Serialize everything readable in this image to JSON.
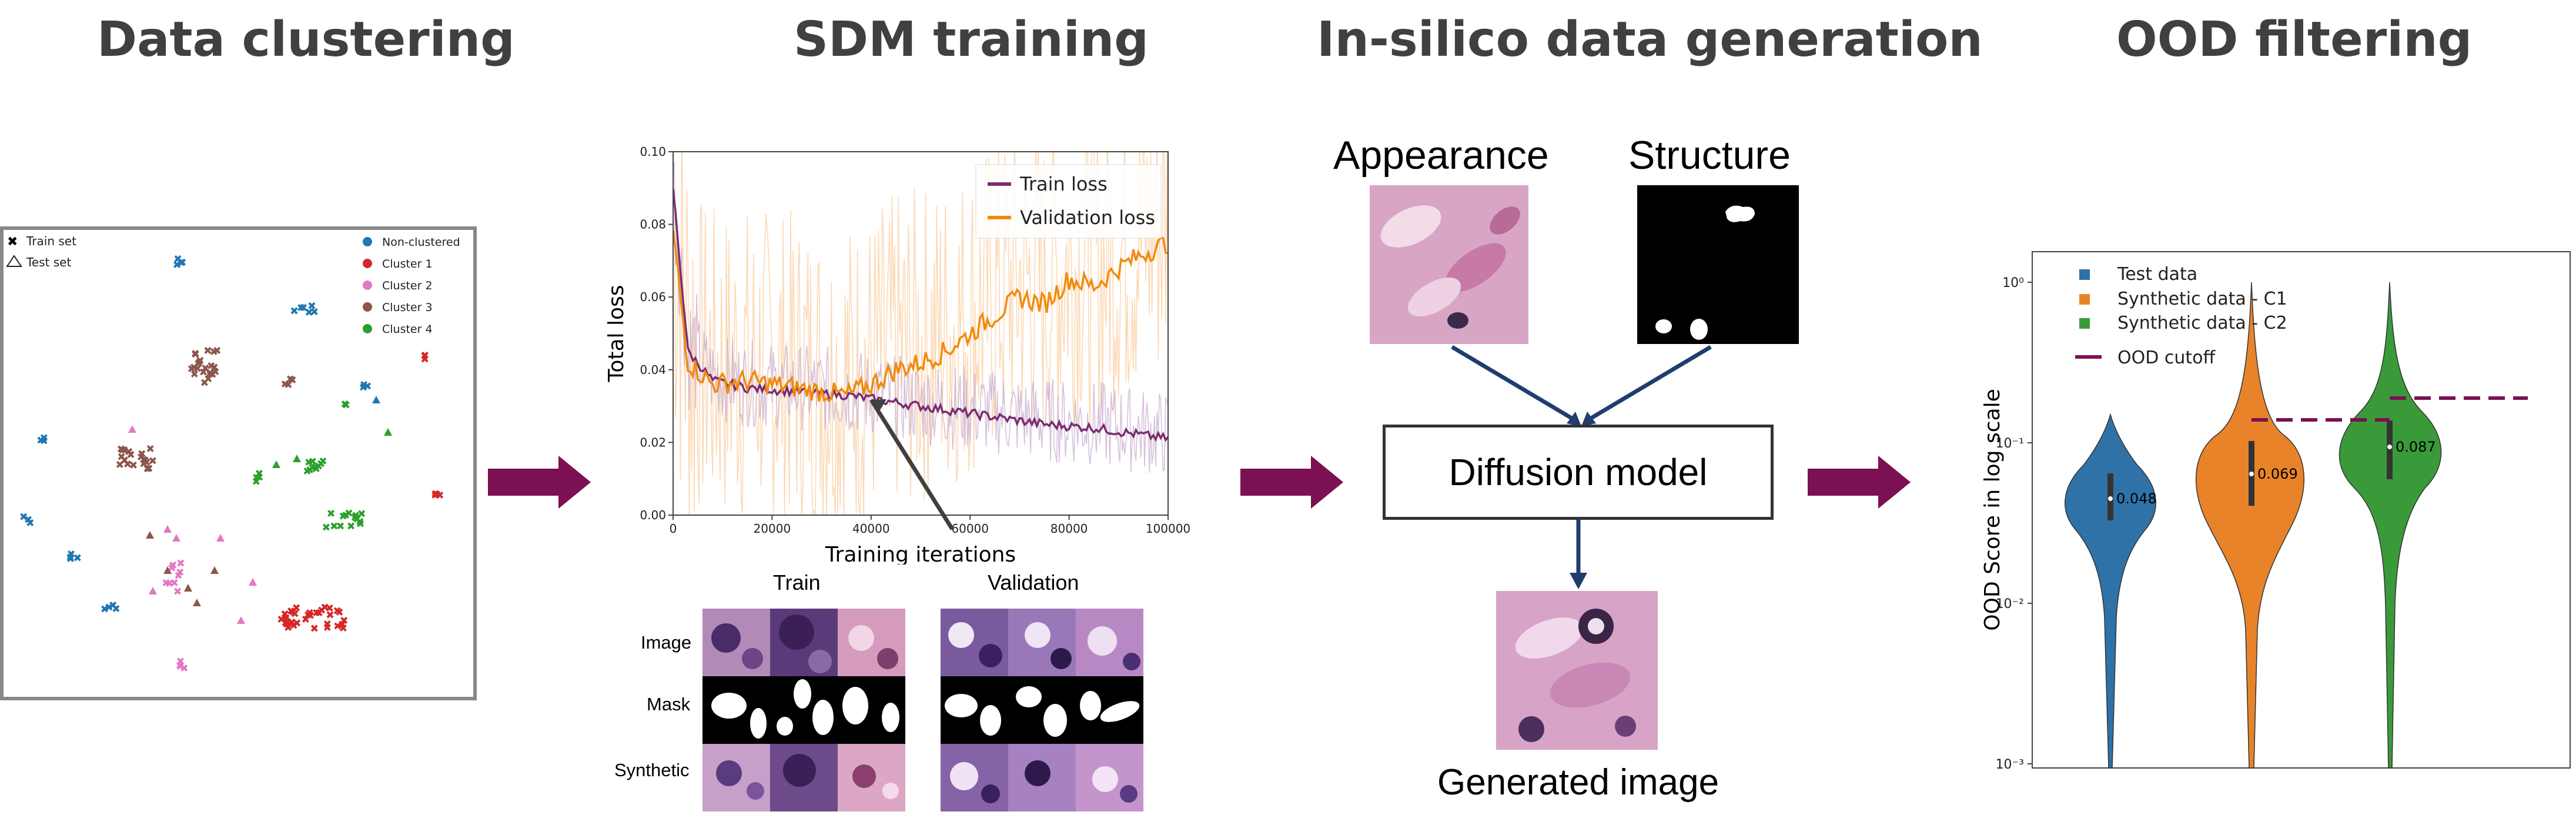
{
  "stages": {
    "clustering": "Data clustering",
    "sdm": "SDM training",
    "insilico": "In-silico data generation",
    "ood": "OOD filtering"
  },
  "clustering_plot": {
    "legend_shapes": [
      "Train set",
      "Test set"
    ],
    "legend_clusters": [
      {
        "label": "Non-clustered",
        "color": "#1f77b4"
      },
      {
        "label": "Cluster 1",
        "color": "#d62728"
      },
      {
        "label": "Cluster 2",
        "color": "#e377c2"
      },
      {
        "label": "Cluster 3",
        "color": "#8c564b"
      },
      {
        "label": "Cluster 4",
        "color": "#2ca02c"
      }
    ]
  },
  "loss_plot": {
    "ylabel": "Total loss",
    "xlabel": "Training iterations",
    "legend": [
      {
        "label": "Train loss",
        "color": "#7b2d6e"
      },
      {
        "label": "Validation loss",
        "color": "#f28a0c"
      }
    ],
    "yticks": [
      "0.00",
      "0.02",
      "0.04",
      "0.06",
      "0.08",
      "0.10"
    ],
    "xticks": [
      "0",
      "20000",
      "40000",
      "60000",
      "80000",
      "100000"
    ]
  },
  "chart_data": {
    "type": "line",
    "title": "",
    "xlabel": "Training iterations",
    "ylabel": "Total loss",
    "xlim": [
      0,
      100000
    ],
    "ylim": [
      0,
      0.1
    ],
    "series": [
      {
        "name": "Train loss",
        "x": [
          0,
          3000,
          8000,
          15000,
          25000,
          35000,
          45000,
          55000,
          65000,
          75000,
          85000,
          95000,
          100000
        ],
        "y": [
          0.09,
          0.045,
          0.037,
          0.035,
          0.034,
          0.033,
          0.031,
          0.029,
          0.027,
          0.025,
          0.024,
          0.022,
          0.021
        ]
      },
      {
        "name": "Validation loss",
        "x": [
          0,
          3000,
          8000,
          15000,
          25000,
          35000,
          40000,
          45000,
          50000,
          55000,
          60000,
          65000,
          70000,
          75000,
          80000,
          85000,
          90000,
          95000,
          100000
        ],
        "y": [
          0.078,
          0.042,
          0.036,
          0.037,
          0.035,
          0.033,
          0.036,
          0.04,
          0.042,
          0.045,
          0.05,
          0.055,
          0.06,
          0.058,
          0.065,
          0.063,
          0.068,
          0.072,
          0.075
        ]
      }
    ]
  },
  "sdm_grid": {
    "col_train": "Train",
    "col_validation": "Validation",
    "rows": [
      "Image",
      "Mask",
      "Synthetic"
    ]
  },
  "generation": {
    "appearance": "Appearance",
    "structure": "Structure",
    "model": "Diffusion model",
    "generated": "Generated image"
  },
  "violin": {
    "ylabel": "OOD Score in log scale",
    "yticks": [
      "10⁰",
      "10⁻¹",
      "10⁻²",
      "10⁻³"
    ],
    "legend": [
      {
        "label": "Test data",
        "color": "#2e72a8"
      },
      {
        "label": "Synthetic data - C1",
        "color": "#e8832a"
      },
      {
        "label": "Synthetic data - C2",
        "color": "#3a9a3a"
      },
      {
        "label": "OOD cutoff",
        "color": "#7b1052"
      }
    ],
    "medians": [
      "0.048",
      "0.069",
      "0.087"
    ]
  },
  "colors": {
    "arrow": "#7b1052",
    "navy": "#1f3e6e",
    "title": "#404040"
  }
}
